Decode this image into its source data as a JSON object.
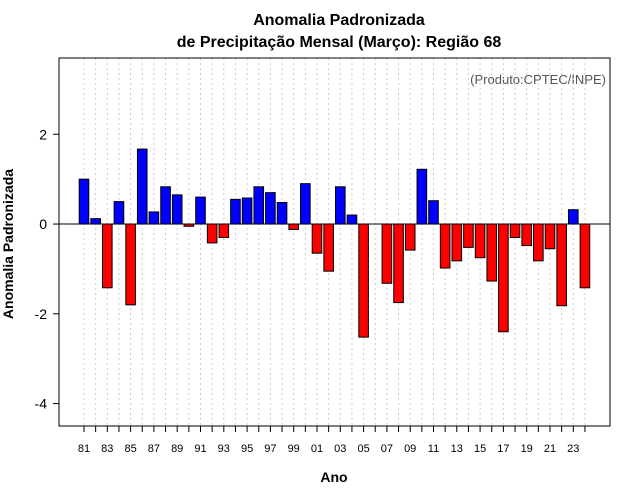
{
  "chart_data": {
    "type": "bar",
    "title": "Anomalia Padronizada",
    "subtitle": "de Precipitação Mensal (Março): Região 68",
    "xlabel": "Ano",
    "ylabel": "Anomalia Padronizada",
    "credit": "(Produto:CPTEC/INPE)",
    "ylim": [
      -4.5,
      3.7
    ],
    "yticks": [
      -4,
      -2,
      0,
      2
    ],
    "ytick_labels": [
      "-4",
      "-2",
      "0",
      "2"
    ],
    "grid": "vertical dotted",
    "colors": {
      "positive": "#0000ff",
      "negative": "#ff0000",
      "grid": "#cccccc",
      "frame": "#000000"
    },
    "categories": [
      "81",
      "82",
      "83",
      "84",
      "85",
      "86",
      "87",
      "88",
      "89",
      "90",
      "91",
      "92",
      "93",
      "94",
      "95",
      "96",
      "97",
      "98",
      "99",
      "00",
      "01",
      "02",
      "03",
      "04",
      "05",
      "06",
      "07",
      "08",
      "09",
      "10",
      "11",
      "12",
      "13",
      "14",
      "15",
      "16",
      "17",
      "18",
      "19",
      "20",
      "21",
      "22",
      "23",
      "24"
    ],
    "xtick_labels": [
      "81",
      "83",
      "85",
      "87",
      "89",
      "91",
      "93",
      "95",
      "97",
      "99",
      "01",
      "03",
      "05",
      "07",
      "09",
      "11",
      "13",
      "15",
      "17",
      "19",
      "21",
      "23"
    ],
    "values": [
      1.0,
      0.12,
      -1.42,
      0.5,
      -1.8,
      1.67,
      0.27,
      0.83,
      0.65,
      -0.05,
      0.6,
      -0.42,
      -0.3,
      0.55,
      0.58,
      0.83,
      0.7,
      0.48,
      -0.12,
      0.9,
      -0.65,
      -1.05,
      0.83,
      0.2,
      -2.52,
      0.0,
      -1.32,
      -1.75,
      -0.58,
      1.22,
      0.52,
      -0.98,
      -0.82,
      -0.52,
      -0.75,
      -1.27,
      -2.4,
      -0.3,
      -0.48,
      -0.82,
      -0.55,
      -1.82,
      0.32,
      -1.42
    ]
  }
}
